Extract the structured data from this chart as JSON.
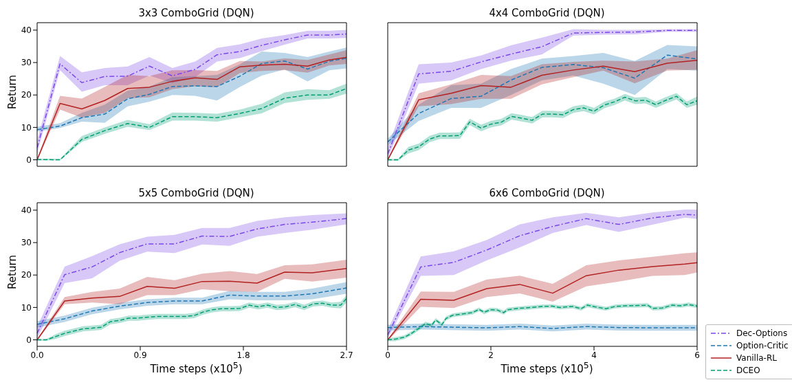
{
  "chart_data": [
    {
      "type": "line",
      "title": "3x3 ComboGrid (DQN)",
      "ylabel": "Return",
      "xlim": [
        0,
        2.7
      ],
      "xticks": [
        0,
        0.9,
        1.8,
        2.7
      ],
      "ylim": [
        -2,
        42.3
      ],
      "yticks": [
        0,
        10,
        20,
        30,
        40
      ],
      "tick_labels": "y",
      "legend": false,
      "marker": "none",
      "series": [
        {
          "color": "#7b48e8",
          "line_style": "dashdot",
          "x": [
            0,
            0.2,
            0.39,
            0.59,
            0.79,
            0.98,
            1.18,
            1.38,
            1.57,
            1.77,
            1.96,
            2.16,
            2.36,
            2.55,
            2.7
          ],
          "values": [
            3.7,
            29.6,
            23.8,
            25.7,
            25.8,
            28.9,
            25.9,
            27.9,
            32.4,
            33.4,
            35.3,
            37,
            38.5,
            38.5,
            38.8
          ],
          "lower": [
            2,
            27.7,
            21,
            23,
            23,
            26,
            23.7,
            25.5,
            30.3,
            31.4,
            33.5,
            35.5,
            37.4,
            37.4,
            37.6
          ],
          "upper": [
            6,
            32,
            27,
            28.3,
            28.8,
            31.7,
            28.3,
            30.3,
            34.5,
            35.6,
            37.4,
            38.5,
            39.8,
            39.8,
            40.1
          ]
        },
        {
          "color": "#1f77b4",
          "line_style": "dashed",
          "x": [
            0,
            0.2,
            0.39,
            0.59,
            0.79,
            0.98,
            1.18,
            1.38,
            1.57,
            1.77,
            1.96,
            2.16,
            2.36,
            2.55,
            2.7
          ],
          "values": [
            9.3,
            10.4,
            13,
            14.1,
            18.8,
            20.2,
            22.6,
            22.8,
            22.6,
            25.8,
            29.7,
            30.5,
            28,
            30.4,
            31.3
          ],
          "lower": [
            8.7,
            9.8,
            11.8,
            11.4,
            16.5,
            17.9,
            20,
            19.7,
            18.3,
            22.5,
            26,
            27.9,
            24.2,
            27.6,
            28.2
          ],
          "upper": [
            10.2,
            11.3,
            14.5,
            17,
            21.3,
            22.6,
            25.5,
            25.8,
            26.2,
            29.5,
            33.4,
            33,
            31.7,
            33.4,
            34.6
          ]
        },
        {
          "color": "#b22222",
          "line_style": "solid",
          "x": [
            0,
            0.2,
            0.39,
            0.59,
            0.79,
            0.98,
            1.18,
            1.38,
            1.57,
            1.77,
            1.96,
            2.16,
            2.36,
            2.55,
            2.7
          ],
          "values": [
            0,
            17.4,
            15.7,
            18.3,
            22,
            22.4,
            24.2,
            25.3,
            24.8,
            28.7,
            29.2,
            29.5,
            28.9,
            30.8,
            31.6
          ],
          "lower": [
            -0.3,
            15.5,
            13,
            14.5,
            19,
            19.3,
            21.8,
            22.7,
            22.4,
            26.8,
            27.4,
            27.7,
            26.9,
            29.1,
            29.6
          ],
          "upper": [
            0.3,
            19.7,
            18.9,
            22.5,
            26.2,
            25.8,
            27.6,
            27.7,
            27.4,
            30.5,
            30.3,
            31.3,
            30.8,
            32.5,
            33.8
          ]
        },
        {
          "color": "#009e73",
          "line_style": "dashed",
          "x": [
            0,
            0.2,
            0.39,
            0.59,
            0.79,
            0.98,
            1.18,
            1.38,
            1.57,
            1.77,
            1.96,
            2.16,
            2.36,
            2.55,
            2.7
          ],
          "values": [
            0.1,
            0,
            6.3,
            9,
            11.2,
            10,
            13.3,
            13.3,
            13,
            14.3,
            15.8,
            19,
            20,
            20,
            22
          ],
          "lower": [
            -0.2,
            -0.2,
            5.5,
            8,
            10.2,
            9.2,
            12.1,
            12.1,
            11.8,
            13.1,
            14.3,
            17.5,
            18.5,
            18.8,
            20.4
          ],
          "upper": [
            0.4,
            0.3,
            7.3,
            10,
            12.3,
            11,
            14.6,
            14.5,
            14.2,
            15.5,
            17.3,
            20.8,
            21.8,
            21.5,
            23.5
          ]
        }
      ]
    },
    {
      "type": "line",
      "title": "4x4 ComboGrid (DQN)",
      "xlim": [
        0,
        6
      ],
      "xticks": [
        0,
        2,
        4,
        6
      ],
      "ylim": [
        -2,
        42.3
      ],
      "yticks": [
        0,
        10,
        20,
        30,
        40
      ],
      "tick_labels": false,
      "legend": false,
      "marker": "none",
      "series": [
        {
          "color": "#7b48e8",
          "line_style": "dashdot",
          "x": [
            0,
            0.6,
            1.23,
            1.81,
            2.39,
            2.99,
            3.6,
            4.18,
            4.79,
            5.42,
            6
          ],
          "values": [
            1.8,
            26.5,
            27.3,
            30.2,
            32.6,
            34.9,
            39.1,
            39.3,
            39.4,
            39.9,
            39.9
          ],
          "lower": [
            0.5,
            23.5,
            24.5,
            28,
            30.6,
            32.5,
            38.3,
            38.6,
            38.7,
            39.5,
            39.5
          ],
          "upper": [
            4,
            29.5,
            30,
            32.2,
            35.3,
            37.7,
            40.3,
            40.1,
            40.1,
            40.3,
            40.3
          ]
        },
        {
          "color": "#1f77b4",
          "line_style": "dashed",
          "x": [
            0,
            0.6,
            1.23,
            1.81,
            2.39,
            2.99,
            3.6,
            4.18,
            4.79,
            5.42,
            6
          ],
          "values": [
            5.5,
            14.3,
            18.9,
            19.6,
            24.6,
            28.5,
            29.4,
            28.4,
            25.2,
            32.3,
            31.1
          ],
          "lower": [
            4.5,
            12,
            16,
            16,
            20,
            24.5,
            26,
            23.5,
            20,
            28,
            27.5
          ],
          "upper": [
            6.5,
            17,
            23,
            23.5,
            28,
            31.2,
            32,
            33,
            30.5,
            35.4,
            35
          ]
        },
        {
          "color": "#b22222",
          "line_style": "solid",
          "x": [
            0,
            0.6,
            1.23,
            1.81,
            2.39,
            2.99,
            3.6,
            4.18,
            4.79,
            5.42,
            6
          ],
          "values": [
            0,
            18.5,
            20.5,
            22.9,
            22.4,
            26.1,
            27.7,
            28.9,
            27.2,
            29.8,
            30.7
          ],
          "lower": [
            -0.3,
            16.5,
            17.2,
            18.8,
            18.8,
            23.3,
            25.5,
            27.5,
            23.6,
            27.5,
            27.8
          ],
          "upper": [
            0.3,
            20.5,
            23.3,
            26.2,
            25.8,
            29.5,
            30.2,
            30.6,
            30.3,
            31.2,
            33.8
          ]
        },
        {
          "color": "#009e73",
          "line_style": "dashed",
          "x": [
            0,
            0.2,
            0.4,
            0.6,
            0.81,
            1.01,
            1.2,
            1.4,
            1.59,
            1.81,
            2,
            2.2,
            2.4,
            2.61,
            2.8,
            3,
            3.2,
            3.4,
            3.6,
            3.8,
            4,
            4.2,
            4.4,
            4.6,
            4.8,
            5,
            5.2,
            5.4,
            5.6,
            5.8,
            6
          ],
          "values": [
            0,
            0,
            3,
            4,
            6.4,
            7.4,
            7.4,
            7.5,
            11.7,
            9.8,
            11,
            11.6,
            13.4,
            12.8,
            12.2,
            14.1,
            14.1,
            13.9,
            15.5,
            16,
            15,
            16.9,
            17.9,
            19.3,
            18.2,
            18.4,
            17,
            18.4,
            19.6,
            17,
            18.2
          ],
          "lower": [
            -0.3,
            -0.3,
            2,
            3,
            5.4,
            6.4,
            6.4,
            6.5,
            10.7,
            8.8,
            10,
            10.6,
            12.4,
            11.8,
            11.2,
            13.1,
            13.1,
            12.9,
            14.5,
            15,
            14,
            15.9,
            16.9,
            18.3,
            17.2,
            17.4,
            16,
            17.4,
            18.6,
            16,
            17
          ],
          "upper": [
            0.3,
            0.3,
            4,
            5,
            7.4,
            8.4,
            8.4,
            8.5,
            12.7,
            10.8,
            12,
            12.6,
            14.4,
            13.8,
            13.2,
            15.1,
            15.1,
            14.9,
            16.5,
            17,
            16,
            17.9,
            18.9,
            20.3,
            19.2,
            19.4,
            18,
            19.4,
            20.6,
            18,
            19.5
          ]
        }
      ]
    },
    {
      "type": "line",
      "title": "5x5 ComboGrid (DQN)",
      "xlabel": "Time steps (x10$^{5}$)",
      "ylabel": "Return",
      "xlim": [
        0,
        2.7
      ],
      "xticks": [
        {
          "value": 0,
          "label": "0.0"
        },
        0.9,
        1.8,
        2.7
      ],
      "ylim": [
        -2,
        42.3
      ],
      "yticks": [
        0,
        10,
        20,
        30,
        40
      ],
      "legend": false,
      "marker": "none",
      "series": [
        {
          "color": "#7b48e8",
          "line_style": "dashdot",
          "x": [
            0,
            0.24,
            0.48,
            0.72,
            0.96,
            1.2,
            1.44,
            1.68,
            1.92,
            2.16,
            2.4,
            2.7
          ],
          "values": [
            2,
            20.1,
            22.5,
            26.9,
            29.6,
            29.6,
            32,
            31.9,
            34.2,
            35.6,
            36.3,
            37.4
          ],
          "lower": [
            0.5,
            17.5,
            19,
            24.4,
            27.2,
            26.8,
            29.4,
            29,
            31.8,
            33,
            34,
            35.6
          ],
          "upper": [
            4,
            22.6,
            25.8,
            29.5,
            31.8,
            32.4,
            34.5,
            34.5,
            36.7,
            37.8,
            38.5,
            39
          ]
        },
        {
          "color": "#1f77b4",
          "line_style": "dashed",
          "x": [
            0,
            0.24,
            0.48,
            0.72,
            0.96,
            1.2,
            1.44,
            1.68,
            1.92,
            2.16,
            2.4,
            2.7
          ],
          "values": [
            4.8,
            6.5,
            8.9,
            10.4,
            11.5,
            12,
            12,
            13.8,
            13.5,
            13.5,
            14.2,
            16
          ],
          "lower": [
            3.8,
            5.5,
            7.9,
            9.4,
            10.5,
            11,
            11,
            12.5,
            12.2,
            12.2,
            12.5,
            14.2
          ],
          "upper": [
            5.8,
            7.5,
            9.9,
            11.4,
            12.5,
            13,
            13,
            15.1,
            14.8,
            14.8,
            15.8,
            17.8
          ]
        },
        {
          "color": "#b22222",
          "line_style": "solid",
          "x": [
            0,
            0.24,
            0.48,
            0.72,
            0.96,
            1.2,
            1.44,
            1.68,
            1.92,
            2.16,
            2.4,
            2.7
          ],
          "values": [
            0,
            12,
            12.9,
            13.4,
            16.5,
            15.9,
            18,
            18.1,
            17.5,
            20.9,
            20.7,
            22
          ],
          "lower": [
            -0.3,
            11,
            11.5,
            11,
            13.8,
            13.8,
            15.6,
            15,
            14.8,
            18.8,
            18,
            19.2
          ],
          "upper": [
            0.3,
            13.2,
            14.8,
            15.8,
            19.4,
            18.4,
            20.4,
            21.2,
            20.3,
            23,
            23.3,
            24.7
          ]
        },
        {
          "color": "#009e73",
          "line_style": "dashed",
          "x": [
            0,
            0.08,
            0.16,
            0.24,
            0.32,
            0.4,
            0.48,
            0.56,
            0.64,
            0.72,
            0.8,
            0.88,
            0.97,
            1.05,
            1.13,
            1.21,
            1.29,
            1.37,
            1.45,
            1.53,
            1.61,
            1.69,
            1.77,
            1.85,
            1.93,
            2.01,
            2.09,
            2.17,
            2.25,
            2.33,
            2.41,
            2.49,
            2.57,
            2.65,
            2.7
          ],
          "values": [
            0,
            0,
            1,
            2,
            2.7,
            3.4,
            3.6,
            3.9,
            5.6,
            6,
            6.7,
            6.7,
            7,
            7.2,
            7.2,
            7.2,
            7.2,
            7.5,
            8.6,
            9.3,
            9.6,
            9.6,
            9.7,
            10.7,
            10.2,
            10.7,
            10,
            10.2,
            10.9,
            10,
            11.1,
            11.3,
            10.7,
            10.7,
            12.8
          ],
          "lower": [
            -0.3,
            -0.3,
            0.3,
            1.2,
            1.9,
            2.6,
            2.8,
            3.1,
            4.8,
            5.2,
            5.9,
            5.9,
            6.2,
            6.4,
            6.4,
            6.4,
            6.4,
            6.7,
            7.8,
            8.5,
            8.8,
            8.8,
            8.9,
            9.9,
            9.4,
            9.9,
            9.2,
            9.4,
            10.1,
            9.2,
            10.3,
            10.5,
            9.9,
            9.7,
            11.5
          ],
          "upper": [
            0.3,
            0.3,
            1.7,
            2.8,
            3.5,
            4.2,
            4.4,
            4.7,
            6.4,
            6.8,
            7.5,
            7.5,
            7.8,
            8,
            8,
            8,
            8,
            8.3,
            9.4,
            10.1,
            10.4,
            10.4,
            10.5,
            11.5,
            11,
            11.5,
            10.8,
            11,
            11.7,
            10.8,
            11.9,
            12.1,
            11.5,
            11.7,
            13.8
          ]
        }
      ]
    },
    {
      "type": "line",
      "title": "6x6 ComboGrid (DQN)",
      "xlabel": "Time steps (x10$^{5}$)",
      "xlim": [
        0,
        6
      ],
      "xticks": [
        0,
        2,
        4,
        6
      ],
      "ylim": [
        -2,
        42.3
      ],
      "yticks": [
        0,
        10,
        20,
        30,
        40
      ],
      "tick_labels": "x",
      "legend": "bottom right",
      "marker": "none",
      "series": [
        {
          "name": "Dec-Options",
          "color": "#7b48e8",
          "line_style": "dashdot",
          "x": [
            0,
            0.64,
            1.28,
            1.92,
            2.56,
            3.2,
            3.85,
            4.48,
            5.13,
            5.76,
            6
          ],
          "values": [
            1.5,
            22.5,
            23.9,
            27.7,
            32.1,
            35,
            37.4,
            35.6,
            37.6,
            38.7,
            38.5
          ],
          "lower": [
            0.5,
            19.7,
            20,
            24.5,
            28.5,
            33,
            35.4,
            33.3,
            35.5,
            37.7,
            37.3
          ],
          "upper": [
            3,
            25.7,
            27.3,
            30.8,
            35.6,
            37.8,
            39.2,
            37.8,
            39.3,
            40.2,
            40.2
          ]
        },
        {
          "name": "Option-Critic",
          "color": "#1f77b4",
          "line_style": "dashed",
          "x": [
            0,
            0.64,
            1.92,
            2.56,
            3.2,
            3.85,
            4.48,
            5.13,
            6
          ],
          "values": [
            3.8,
            4.1,
            3.7,
            4.1,
            3.5,
            4.1,
            3.8,
            3.7,
            3.7
          ],
          "lower": [
            2.9,
            3.2,
            2.8,
            3.2,
            2.6,
            3.2,
            2.9,
            2.8,
            2.8
          ],
          "upper": [
            4.7,
            5,
            4.6,
            5,
            4.4,
            5,
            4.7,
            4.6,
            4.6
          ]
        },
        {
          "name": "Vanilla-RL",
          "color": "#b22222",
          "line_style": "solid",
          "x": [
            0,
            0.64,
            1.28,
            1.92,
            2.56,
            3.2,
            3.85,
            4.48,
            5.13,
            5.76,
            6
          ],
          "values": [
            0,
            12.5,
            12.2,
            15.8,
            17.1,
            14.4,
            19.8,
            21.5,
            22.6,
            23.4,
            23.8
          ],
          "lower": [
            -0.3,
            10.2,
            9.8,
            13.2,
            14.3,
            11.8,
            16.5,
            18,
            19.7,
            20,
            20.8
          ],
          "upper": [
            0.3,
            14.9,
            14.8,
            18.6,
            19.8,
            17.3,
            23,
            24.5,
            25.6,
            26.7,
            27
          ]
        },
        {
          "name": "DCEO",
          "color": "#009e73",
          "line_style": "dashed",
          "x": [
            0,
            0.14,
            0.32,
            0.45,
            0.6,
            0.73,
            0.85,
            0.93,
            1.05,
            1.13,
            1.26,
            1.36,
            1.51,
            1.64,
            1.77,
            1.87,
            1.99,
            2.12,
            2.25,
            2.32,
            2.53,
            2.78,
            2.98,
            3.19,
            3.34,
            3.59,
            3.75,
            3.87,
            4.02,
            4.23,
            4.41,
            4.61,
            4.86,
            5.04,
            5.14,
            5.32,
            5.52,
            5.68,
            5.83,
            6
          ],
          "values": [
            0,
            0.2,
            0.8,
            1.9,
            3.5,
            5,
            4.5,
            6.1,
            4.7,
            6.6,
            7.6,
            7.8,
            8.1,
            8.4,
            9.4,
            8.5,
            9.3,
            9.2,
            8.4,
            9.3,
            9.7,
            10,
            10.3,
            10.4,
            10,
            10.3,
            9.6,
            10.7,
            10.2,
            9.6,
            10.3,
            10.5,
            10.6,
            10.7,
            9.7,
            9.8,
            10.7,
            10.5,
            10.9,
            10.4
          ],
          "lower": [
            -0.4,
            -0.4,
            0.2,
            1.3,
            2.9,
            4.4,
            3.9,
            5.5,
            4.1,
            6,
            7,
            7.2,
            7.5,
            7.8,
            8.8,
            7.9,
            8.7,
            8.6,
            7.8,
            8.7,
            9.1,
            9.4,
            9.7,
            9.8,
            9.4,
            9.7,
            9,
            10.1,
            9.6,
            9,
            9.7,
            9.9,
            10,
            10.1,
            9.1,
            9.2,
            10.1,
            9.9,
            10.3,
            9.8
          ],
          "upper": [
            0.4,
            0.8,
            1.4,
            2.5,
            4.1,
            5.6,
            5.1,
            6.7,
            5.3,
            7.2,
            8.2,
            8.4,
            8.7,
            9,
            10,
            9.1,
            9.9,
            9.8,
            9,
            9.9,
            10.3,
            10.6,
            10.9,
            11,
            10.6,
            10.9,
            10.2,
            11.3,
            10.8,
            10.2,
            10.9,
            11.1,
            11.2,
            11.3,
            10.3,
            10.4,
            11.3,
            11.1,
            11.5,
            11
          ]
        }
      ]
    }
  ]
}
